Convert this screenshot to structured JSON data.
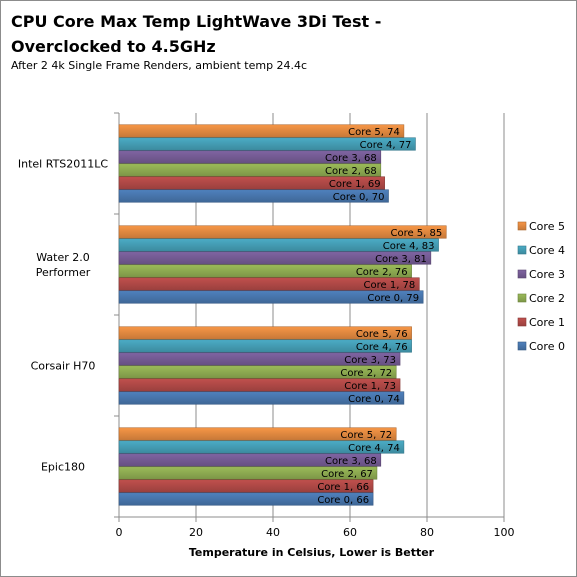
{
  "chart_data": {
    "type": "bar",
    "orientation": "horizontal",
    "title": "CPU Core Max Temp LightWave 3Di Test - Overclocked to 4.5GHz",
    "subtitle": "After 2 4k Single Frame Renders, ambient temp 24.4c",
    "xlabel": "Temperature in Celsius,  Lower is Better",
    "ylabel": "",
    "xlim": [
      0,
      100
    ],
    "xticks": [
      0,
      20,
      40,
      60,
      80,
      100
    ],
    "grid": true,
    "legend_position": "right",
    "categories": [
      "Intel RTS2011LC",
      "Water 2.0 Performer",
      "Corsair H70",
      "Epic180"
    ],
    "category_lines": [
      [
        "Intel RTS2011LC"
      ],
      [
        "Water 2.0",
        "Performer"
      ],
      [
        "Corsair H70"
      ],
      [
        "Epic180"
      ]
    ],
    "series": [
      {
        "name": "Core 0",
        "color": "#4f81bd",
        "values": [
          70,
          79,
          74,
          66
        ]
      },
      {
        "name": "Core 1",
        "color": "#c0504d",
        "values": [
          69,
          78,
          73,
          66
        ]
      },
      {
        "name": "Core 2",
        "color": "#9bbb59",
        "values": [
          68,
          76,
          72,
          67
        ]
      },
      {
        "name": "Core 3",
        "color": "#8064a2",
        "values": [
          68,
          81,
          73,
          68
        ]
      },
      {
        "name": "Core 4",
        "color": "#4bacc6",
        "values": [
          77,
          83,
          76,
          74
        ]
      },
      {
        "name": "Core 5",
        "color": "#f79646",
        "values": [
          74,
          85,
          76,
          72
        ]
      }
    ]
  }
}
